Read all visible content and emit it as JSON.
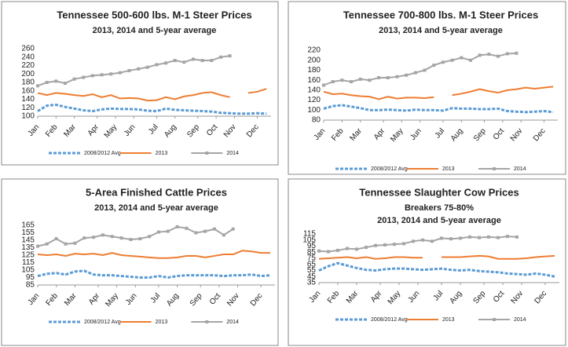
{
  "chart_data": [
    {
      "type": "line",
      "title": "Tennessee 500-600 lbs. M-1 Steer Prices",
      "subtitle": [
        "2013, 2014 and 5-year average"
      ],
      "x": [
        1,
        3,
        5,
        7,
        9,
        11,
        13,
        15,
        17,
        19,
        21,
        23,
        25,
        27,
        29,
        31,
        33,
        35,
        37,
        39,
        41,
        43,
        45,
        47,
        49,
        51
      ],
      "xlim": [
        1,
        52
      ],
      "xticks": [
        {
          "value": 1,
          "label": "Jan"
        },
        {
          "value": 5,
          "label": "Feb"
        },
        {
          "value": 9,
          "label": "Mar"
        },
        {
          "value": 14,
          "label": "Apr"
        },
        {
          "value": 18,
          "label": "May"
        },
        {
          "value": 22,
          "label": "Jun"
        },
        {
          "value": 27,
          "label": "Jul"
        },
        {
          "value": 31,
          "label": "Aug"
        },
        {
          "value": 36,
          "label": "Sep"
        },
        {
          "value": 40,
          "label": "Oct"
        },
        {
          "value": 44,
          "label": "Nov"
        },
        {
          "value": 49,
          "label": "Dec"
        }
      ],
      "ylim": [
        100,
        260
      ],
      "yticks": [
        100,
        120,
        140,
        160,
        180,
        200,
        220,
        240,
        260
      ],
      "grid": false,
      "series": [
        {
          "name": "2008/2012 Avg",
          "color": "#5b9bd5",
          "dashed": true,
          "values": [
            112,
            125,
            127,
            122,
            118,
            114,
            112,
            116,
            118,
            117,
            117,
            116,
            113,
            112,
            118,
            115,
            114,
            113,
            112,
            111,
            108,
            107,
            106,
            106,
            107,
            106
          ]
        },
        {
          "name": "2013",
          "color": "#ed7d31",
          "values": [
            155,
            150,
            155,
            153,
            150,
            148,
            152,
            145,
            150,
            142,
            143,
            142,
            137,
            138,
            145,
            140,
            147,
            150,
            155,
            157,
            150,
            145,
            null,
            155,
            158,
            165
          ]
        },
        {
          "name": "2014",
          "color": "#a5a5a5",
          "markers": true,
          "values": [
            172,
            180,
            183,
            178,
            188,
            192,
            196,
            198,
            200,
            203,
            208,
            212,
            216,
            222,
            226,
            232,
            228,
            235,
            232,
            232,
            240,
            243,
            null,
            null,
            null,
            null
          ]
        }
      ]
    },
    {
      "type": "line",
      "title": "Tennessee 700-800 lbs. M-1 Steer Prices",
      "subtitle": [
        "2013, 2014 and 5-year average"
      ],
      "x": [
        1,
        3,
        5,
        7,
        9,
        11,
        13,
        15,
        17,
        19,
        21,
        23,
        25,
        27,
        29,
        31,
        33,
        35,
        37,
        39,
        41,
        43,
        45,
        47,
        49,
        51
      ],
      "xlim": [
        1,
        52
      ],
      "xticks": [
        {
          "value": 1,
          "label": "Jan"
        },
        {
          "value": 5,
          "label": "Feb"
        },
        {
          "value": 9,
          "label": "Mar"
        },
        {
          "value": 14,
          "label": "Apr"
        },
        {
          "value": 18,
          "label": "May"
        },
        {
          "value": 22,
          "label": "Jun"
        },
        {
          "value": 27,
          "label": "Jul"
        },
        {
          "value": 31,
          "label": "Aug"
        },
        {
          "value": 36,
          "label": "Sep"
        },
        {
          "value": 40,
          "label": "Oct"
        },
        {
          "value": 44,
          "label": "Nov"
        },
        {
          "value": 49,
          "label": "Dec"
        }
      ],
      "ylim": [
        80,
        220
      ],
      "yticks": [
        80,
        100,
        120,
        140,
        160,
        180,
        200,
        220
      ],
      "grid": false,
      "series": [
        {
          "name": "2008/2012 Avg",
          "color": "#5b9bd5",
          "dashed": true,
          "values": [
            103,
            108,
            110,
            107,
            104,
            100,
            100,
            101,
            100,
            99,
            101,
            100,
            100,
            99,
            104,
            103,
            103,
            102,
            102,
            103,
            98,
            97,
            96,
            97,
            98,
            96
          ]
        },
        {
          "name": "2013",
          "color": "#ed7d31",
          "values": [
            137,
            132,
            133,
            130,
            128,
            127,
            122,
            127,
            123,
            125,
            125,
            124,
            126,
            null,
            130,
            133,
            137,
            142,
            138,
            135,
            140,
            142,
            145,
            143,
            145,
            147
          ]
        },
        {
          "name": "2014",
          "color": "#a5a5a5",
          "markers": true,
          "values": [
            150,
            157,
            160,
            157,
            162,
            160,
            165,
            165,
            167,
            170,
            175,
            180,
            190,
            196,
            200,
            205,
            200,
            210,
            212,
            208,
            213,
            214,
            null,
            null,
            null,
            null
          ]
        }
      ]
    },
    {
      "type": "line",
      "title": "5-Area Finished Cattle Prices",
      "subtitle": [
        "2013, 2014 and 5-year average"
      ],
      "x": [
        1,
        3,
        5,
        7,
        9,
        11,
        13,
        15,
        17,
        19,
        21,
        23,
        25,
        27,
        29,
        31,
        33,
        35,
        37,
        39,
        41,
        43,
        45,
        47,
        49,
        51
      ],
      "xlim": [
        1,
        52
      ],
      "xticks": [
        {
          "value": 1,
          "label": "Jan"
        },
        {
          "value": 5,
          "label": "Feb"
        },
        {
          "value": 9,
          "label": "Mar"
        },
        {
          "value": 14,
          "label": "Apr"
        },
        {
          "value": 18,
          "label": "May"
        },
        {
          "value": 22,
          "label": "Jun"
        },
        {
          "value": 27,
          "label": "Jul"
        },
        {
          "value": 31,
          "label": "Aug"
        },
        {
          "value": 36,
          "label": "Sep"
        },
        {
          "value": 40,
          "label": "Oct"
        },
        {
          "value": 44,
          "label": "Nov"
        },
        {
          "value": 49,
          "label": "Dec"
        }
      ],
      "ylim": [
        85,
        165
      ],
      "yticks": [
        85,
        95,
        105,
        115,
        125,
        135,
        145,
        155,
        165
      ],
      "grid": false,
      "series": [
        {
          "name": "2008/2012 Avg",
          "color": "#5b9bd5",
          "dashed": true,
          "values": [
            97,
            100,
            101,
            99,
            103,
            104,
            99,
            98,
            98,
            97,
            96,
            95,
            95,
            97,
            95,
            97,
            98,
            98,
            98,
            98,
            97,
            98,
            98,
            99,
            97,
            98
          ]
        },
        {
          "name": "2013",
          "color": "#ed7d31",
          "values": [
            126,
            125,
            126,
            124,
            127,
            126,
            127,
            125,
            128,
            125,
            124,
            123,
            122,
            121,
            121,
            122,
            124,
            124,
            122,
            124,
            126,
            126,
            131,
            130,
            128,
            128
          ]
        },
        {
          "name": "2014",
          "color": "#a5a5a5",
          "markers": true,
          "values": [
            137,
            140,
            147,
            140,
            141,
            148,
            149,
            152,
            150,
            148,
            146,
            147,
            150,
            156,
            157,
            163,
            161,
            155,
            157,
            160,
            152,
            160,
            null,
            null,
            null,
            null
          ]
        }
      ]
    },
    {
      "type": "line",
      "title": "Tennessee Slaughter Cow Prices",
      "subtitle": [
        "Breakers 75-80%",
        "2013, 2014 and 5-year average"
      ],
      "x": [
        1,
        3,
        5,
        7,
        9,
        11,
        13,
        15,
        17,
        19,
        21,
        23,
        25,
        27,
        29,
        31,
        33,
        35,
        37,
        39,
        41,
        43,
        45,
        47,
        49,
        51
      ],
      "xlim": [
        1,
        52
      ],
      "xticks": [
        {
          "value": 1,
          "label": "Jan"
        },
        {
          "value": 5,
          "label": "Feb"
        },
        {
          "value": 9,
          "label": "Mar"
        },
        {
          "value": 14,
          "label": "Apr"
        },
        {
          "value": 18,
          "label": "May"
        },
        {
          "value": 22,
          "label": "Jun"
        },
        {
          "value": 27,
          "label": "Jul"
        },
        {
          "value": 31,
          "label": "Aug"
        },
        {
          "value": 36,
          "label": "Sep"
        },
        {
          "value": 40,
          "label": "Oct"
        },
        {
          "value": 44,
          "label": "Nov"
        },
        {
          "value": 49,
          "label": "Dec"
        }
      ],
      "ylim": [
        35,
        115
      ],
      "yticks": [
        35,
        45,
        55,
        65,
        75,
        85,
        95,
        105,
        115
      ],
      "grid": false,
      "series": [
        {
          "name": "2008/2012 Avg",
          "color": "#5b9bd5",
          "dashed": true,
          "values": [
            55,
            62,
            67,
            63,
            59,
            56,
            55,
            57,
            58,
            58,
            57,
            56,
            57,
            58,
            56,
            55,
            56,
            54,
            53,
            52,
            50,
            49,
            48,
            50,
            48,
            45
          ]
        },
        {
          "name": "2013",
          "color": "#ed7d31",
          "values": [
            74,
            75,
            76,
            77,
            75,
            77,
            74,
            75,
            77,
            77,
            76,
            76,
            null,
            77,
            77,
            77,
            78,
            79,
            78,
            74,
            74,
            74,
            75,
            77,
            78,
            79
          ]
        },
        {
          "name": "2014",
          "color": "#a5a5a5",
          "markers": true,
          "values": [
            87,
            86,
            88,
            91,
            90,
            93,
            96,
            97,
            98,
            99,
            103,
            105,
            103,
            108,
            107,
            108,
            110,
            109,
            110,
            109,
            111,
            110,
            null,
            null,
            null,
            null
          ]
        }
      ]
    }
  ]
}
